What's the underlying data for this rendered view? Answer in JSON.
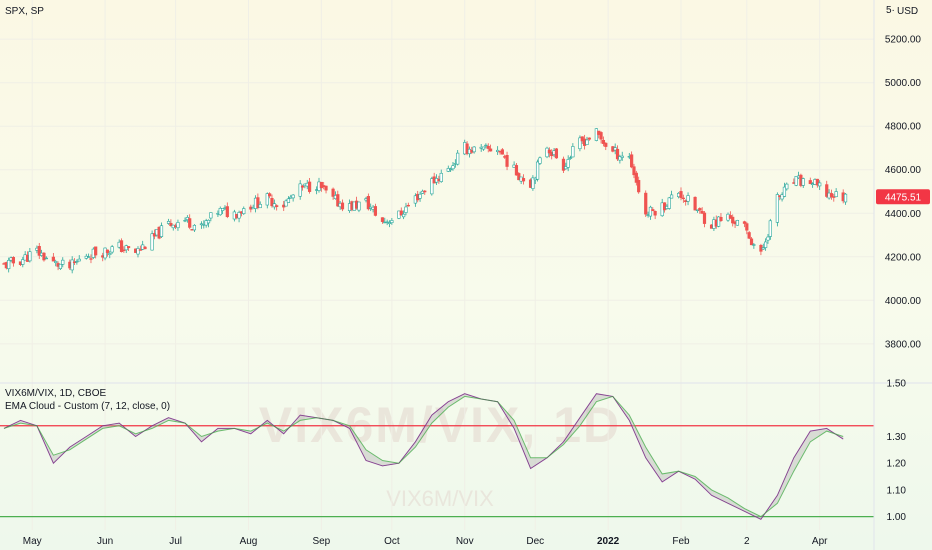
{
  "price_pane": {
    "symbol": "SPX, SP",
    "currency_fragment": "5·",
    "currency": "USD",
    "last_price": "4475.51"
  },
  "indicator_pane": {
    "symbol": "VIX6M/VIX, 1D, CBOE",
    "study": "EMA Cloud - Custom (7, 12, close, 0)",
    "watermark_large": "VIX6M/VIX, 1D",
    "watermark_small": "VIX6M/VIX"
  },
  "time_axis": [
    "May",
    "Jun",
    "Jul",
    "Aug",
    "Sep",
    "Oct",
    "Nov",
    "Dec",
    "2022",
    "Feb",
    "2",
    "Apr"
  ],
  "colors": {
    "up": "#26a69a",
    "down": "#ef5350",
    "price_label": "#f23645",
    "hline_upper": "#f23645",
    "hline_lower": "#4caf50",
    "ema_fast": "#9c27b0",
    "ema_slow": "#4caf50"
  },
  "chart_data": [
    {
      "type": "candlestick",
      "title": "SPX, SP",
      "y_ticks": [
        3800,
        4000,
        4200,
        4400,
        4600,
        4800,
        5000,
        5200
      ],
      "y_tick_labels": [
        "3800.00",
        "4000.00",
        "4200.00",
        "4400.00",
        "4600.00",
        "4800.00",
        "5000.00",
        "5200.00"
      ],
      "ylim": [
        3620,
        5380
      ],
      "last_value": 4475.51,
      "x_range": [
        "2021-04-19",
        "2022-04-19"
      ],
      "closes_weekly": [
        [
          "2021-04-19",
          4160
        ],
        [
          "2021-04-26",
          4185
        ],
        [
          "2021-05-03",
          4225
        ],
        [
          "2021-05-10",
          4170
        ],
        [
          "2021-05-17",
          4150
        ],
        [
          "2021-05-24",
          4210
        ],
        [
          "2021-05-31",
          4225
        ],
        [
          "2021-06-07",
          4245
        ],
        [
          "2021-06-14",
          4220
        ],
        [
          "2021-06-21",
          4280
        ],
        [
          "2021-06-28",
          4350
        ],
        [
          "2021-07-05",
          4370
        ],
        [
          "2021-07-12",
          4330
        ],
        [
          "2021-07-19",
          4410
        ],
        [
          "2021-07-26",
          4400
        ],
        [
          "2021-08-02",
          4440
        ],
        [
          "2021-08-09",
          4465
        ],
        [
          "2021-08-16",
          4440
        ],
        [
          "2021-08-23",
          4510
        ],
        [
          "2021-08-30",
          4535
        ],
        [
          "2021-09-06",
          4460
        ],
        [
          "2021-09-13",
          4430
        ],
        [
          "2021-09-20",
          4450
        ],
        [
          "2021-09-27",
          4360
        ],
        [
          "2021-10-04",
          4390
        ],
        [
          "2021-10-11",
          4470
        ],
        [
          "2021-10-18",
          4545
        ],
        [
          "2021-10-25",
          4600
        ],
        [
          "2021-11-01",
          4700
        ],
        [
          "2021-11-08",
          4685
        ],
        [
          "2021-11-15",
          4700
        ],
        [
          "2021-11-22",
          4595
        ],
        [
          "2021-11-29",
          4540
        ],
        [
          "2021-12-06",
          4710
        ],
        [
          "2021-12-13",
          4620
        ],
        [
          "2021-12-20",
          4725
        ],
        [
          "2021-12-27",
          4765
        ],
        [
          "2022-01-03",
          4680
        ],
        [
          "2022-01-10",
          4660
        ],
        [
          "2022-01-17",
          4395
        ],
        [
          "2022-01-24",
          4430
        ],
        [
          "2022-01-31",
          4500
        ],
        [
          "2022-02-07",
          4420
        ],
        [
          "2022-02-14",
          4350
        ],
        [
          "2022-02-21",
          4385
        ],
        [
          "2022-02-28",
          4330
        ],
        [
          "2022-03-07",
          4205
        ],
        [
          "2022-03-14",
          4465
        ],
        [
          "2022-03-21",
          4545
        ],
        [
          "2022-03-28",
          4545
        ],
        [
          "2022-04-04",
          4490
        ],
        [
          "2022-04-11",
          4475
        ]
      ]
    },
    {
      "type": "line",
      "title": "VIX6M/VIX, 1D, CBOE",
      "y_ticks": [
        1.0,
        1.1,
        1.2,
        1.3,
        1.5
      ],
      "y_tick_labels": [
        "1.00",
        "1.10",
        "1.20",
        "1.30",
        "1.50"
      ],
      "ylim": [
        0.95,
        1.5
      ],
      "hlines": [
        1.34,
        1.0
      ],
      "x_range": [
        "2021-04-19",
        "2022-04-19"
      ],
      "series": [
        {
          "name": "EMA 7",
          "values": [
            [
              "2021-04-19",
              1.33
            ],
            [
              "2021-04-26",
              1.36
            ],
            [
              "2021-05-03",
              1.34
            ],
            [
              "2021-05-10",
              1.2
            ],
            [
              "2021-05-17",
              1.26
            ],
            [
              "2021-05-24",
              1.3
            ],
            [
              "2021-05-31",
              1.34
            ],
            [
              "2021-06-07",
              1.35
            ],
            [
              "2021-06-14",
              1.3
            ],
            [
              "2021-06-21",
              1.34
            ],
            [
              "2021-06-28",
              1.37
            ],
            [
              "2021-07-05",
              1.35
            ],
            [
              "2021-07-12",
              1.28
            ],
            [
              "2021-07-19",
              1.33
            ],
            [
              "2021-07-26",
              1.33
            ],
            [
              "2021-08-02",
              1.31
            ],
            [
              "2021-08-09",
              1.36
            ],
            [
              "2021-08-16",
              1.31
            ],
            [
              "2021-08-23",
              1.38
            ],
            [
              "2021-08-30",
              1.37
            ],
            [
              "2021-09-06",
              1.36
            ],
            [
              "2021-09-13",
              1.33
            ],
            [
              "2021-09-20",
              1.21
            ],
            [
              "2021-09-27",
              1.19
            ],
            [
              "2021-10-04",
              1.2
            ],
            [
              "2021-10-11",
              1.28
            ],
            [
              "2021-10-18",
              1.38
            ],
            [
              "2021-10-25",
              1.43
            ],
            [
              "2021-11-01",
              1.46
            ],
            [
              "2021-11-08",
              1.44
            ],
            [
              "2021-11-15",
              1.43
            ],
            [
              "2021-11-22",
              1.33
            ],
            [
              "2021-11-29",
              1.18
            ],
            [
              "2021-12-06",
              1.22
            ],
            [
              "2021-12-13",
              1.28
            ],
            [
              "2021-12-20",
              1.37
            ],
            [
              "2021-12-27",
              1.46
            ],
            [
              "2022-01-03",
              1.45
            ],
            [
              "2022-01-10",
              1.36
            ],
            [
              "2022-01-17",
              1.22
            ],
            [
              "2022-01-24",
              1.13
            ],
            [
              "2022-01-31",
              1.17
            ],
            [
              "2022-02-07",
              1.14
            ],
            [
              "2022-02-14",
              1.08
            ],
            [
              "2022-02-21",
              1.05
            ],
            [
              "2022-02-28",
              1.02
            ],
            [
              "2022-03-07",
              0.99
            ],
            [
              "2022-03-14",
              1.08
            ],
            [
              "2022-03-21",
              1.22
            ],
            [
              "2022-03-28",
              1.32
            ],
            [
              "2022-04-04",
              1.33
            ],
            [
              "2022-04-11",
              1.29
            ]
          ]
        },
        {
          "name": "EMA 12",
          "values": [
            [
              "2021-04-19",
              1.33
            ],
            [
              "2021-04-26",
              1.35
            ],
            [
              "2021-05-03",
              1.34
            ],
            [
              "2021-05-10",
              1.23
            ],
            [
              "2021-05-17",
              1.25
            ],
            [
              "2021-05-24",
              1.29
            ],
            [
              "2021-05-31",
              1.33
            ],
            [
              "2021-06-07",
              1.34
            ],
            [
              "2021-06-14",
              1.31
            ],
            [
              "2021-06-21",
              1.33
            ],
            [
              "2021-06-28",
              1.36
            ],
            [
              "2021-07-05",
              1.35
            ],
            [
              "2021-07-12",
              1.3
            ],
            [
              "2021-07-19",
              1.32
            ],
            [
              "2021-07-26",
              1.33
            ],
            [
              "2021-08-02",
              1.32
            ],
            [
              "2021-08-09",
              1.35
            ],
            [
              "2021-08-16",
              1.32
            ],
            [
              "2021-08-23",
              1.36
            ],
            [
              "2021-08-30",
              1.37
            ],
            [
              "2021-09-06",
              1.36
            ],
            [
              "2021-09-13",
              1.34
            ],
            [
              "2021-09-20",
              1.25
            ],
            [
              "2021-09-27",
              1.21
            ],
            [
              "2021-10-04",
              1.2
            ],
            [
              "2021-10-11",
              1.26
            ],
            [
              "2021-10-18",
              1.35
            ],
            [
              "2021-10-25",
              1.41
            ],
            [
              "2021-11-01",
              1.45
            ],
            [
              "2021-11-08",
              1.44
            ],
            [
              "2021-11-15",
              1.43
            ],
            [
              "2021-11-22",
              1.36
            ],
            [
              "2021-11-29",
              1.22
            ],
            [
              "2021-12-06",
              1.22
            ],
            [
              "2021-12-13",
              1.27
            ],
            [
              "2021-12-20",
              1.34
            ],
            [
              "2021-12-27",
              1.43
            ],
            [
              "2022-01-03",
              1.45
            ],
            [
              "2022-01-10",
              1.38
            ],
            [
              "2022-01-17",
              1.26
            ],
            [
              "2022-01-24",
              1.16
            ],
            [
              "2022-01-31",
              1.17
            ],
            [
              "2022-02-07",
              1.15
            ],
            [
              "2022-02-14",
              1.1
            ],
            [
              "2022-02-21",
              1.07
            ],
            [
              "2022-02-28",
              1.03
            ],
            [
              "2022-03-07",
              1.0
            ],
            [
              "2022-03-14",
              1.05
            ],
            [
              "2022-03-21",
              1.17
            ],
            [
              "2022-03-28",
              1.28
            ],
            [
              "2022-04-04",
              1.32
            ],
            [
              "2022-04-11",
              1.3
            ]
          ]
        }
      ]
    }
  ]
}
